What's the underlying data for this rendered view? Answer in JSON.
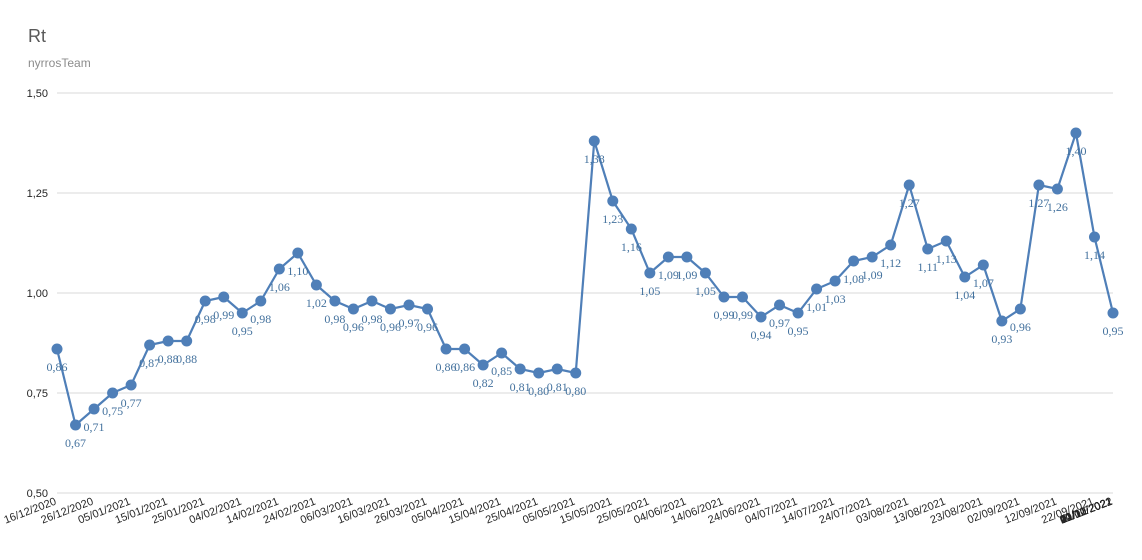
{
  "title": "Rt",
  "subtitle": "nyrrosTeam",
  "colors": {
    "series": "#4f7fb8",
    "label": "#44729e",
    "grid": "#d9d9d9",
    "axis_text": "#262626"
  },
  "chart_data": {
    "type": "line",
    "title": "Rt",
    "subtitle": "nyrrosTeam",
    "xlabel": "",
    "ylabel": "",
    "ylim": [
      0.5,
      1.5
    ],
    "yticks": [
      "0,50",
      "0,75",
      "1,00",
      "1,25",
      "1,50"
    ],
    "grid": true,
    "legend": "none",
    "x_tick_labels": [
      "16/12/2020",
      "26/12/2020",
      "05/01/2021",
      "15/01/2021",
      "25/01/2021",
      "04/02/2021",
      "14/02/2021",
      "24/02/2021",
      "06/03/2021",
      "16/03/2021",
      "26/03/2021",
      "05/04/2021",
      "15/04/2021",
      "25/04/2021",
      "05/05/2021",
      "15/05/2021",
      "25/05/2021",
      "04/06/2021",
      "14/06/2021",
      "24/06/2021",
      "04/07/2021",
      "14/07/2021",
      "24/07/2021",
      "03/08/2021",
      "13/08/2021",
      "23/08/2021",
      "02/09/2021",
      "12/09/2021",
      "22/09/2021",
      "02/10/2021",
      "12/10/2021",
      "22/10/2021",
      "01/11/2021",
      "11/11/2021",
      "21/11/2021",
      "01/12/2021",
      "11/12/2021",
      "21/12/2021",
      "31/12/2021",
      "10/01/2022",
      "20/01/2022"
    ],
    "values": [
      0.86,
      0.67,
      0.71,
      0.75,
      0.77,
      0.87,
      0.88,
      0.88,
      0.98,
      0.99,
      0.95,
      0.98,
      1.06,
      1.1,
      1.02,
      0.98,
      0.96,
      0.98,
      0.96,
      0.97,
      0.96,
      0.86,
      0.86,
      0.82,
      0.85,
      0.81,
      0.8,
      0.81,
      0.8,
      1.38,
      1.23,
      1.16,
      1.05,
      1.09,
      1.09,
      1.05,
      0.99,
      0.99,
      0.94,
      0.97,
      0.95,
      1.01,
      1.03,
      1.08,
      1.09,
      1.12,
      1.27,
      1.11,
      1.13,
      1.04,
      1.07,
      0.93,
      0.96,
      1.27,
      1.26,
      1.4,
      1.14,
      0.95
    ],
    "point_labels": [
      "0,86",
      "0,67",
      "0,71",
      "0,75",
      "0,77",
      "0,87",
      "0,88",
      "0,88",
      "0,98",
      "0,99",
      "0,95",
      "0,98",
      "1,06",
      "1,10",
      "1,02",
      "0,98",
      "0,96",
      "0,98",
      "0,96",
      "0,97",
      "0,96",
      "0,86",
      "0,86",
      "0,82",
      "0,85",
      "0,81",
      "0,80",
      "0,81",
      "0,80",
      "1,38",
      "1,23",
      "1,16",
      "1,05",
      "1,09",
      "1,09",
      "1,05",
      "0,99",
      "0,99",
      "0,94",
      "0,97",
      "0,95",
      "1,01",
      "1,03",
      "1,08",
      "1,09",
      "1,12",
      "1,27",
      "1,11",
      "1,13",
      "1,04",
      "1,07",
      "0,93",
      "0,96",
      "1,27",
      "1,26",
      "1,40",
      "1,14",
      "0,95"
    ]
  }
}
